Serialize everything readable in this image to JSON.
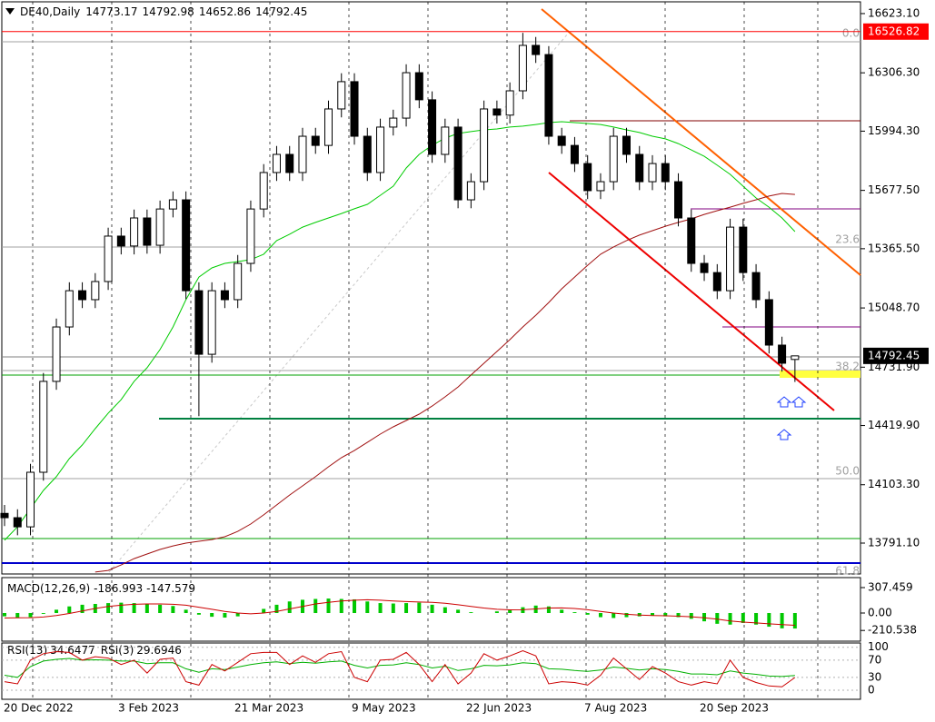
{
  "chart_data": {
    "type": "candlestick",
    "title": "DE40,Daily",
    "header_values": [
      14773.17,
      14792.98,
      14652.86,
      14792.45
    ],
    "bull_color": "#ffffff",
    "bear_color": "#000000",
    "wick_color": "#000000",
    "open": [
      13950,
      13927,
      13878,
      14170,
      14656,
      14947,
      15141,
      15093,
      15190,
      15433,
      15380,
      15530,
      15384,
      15578,
      15627,
      15141,
      14801,
      15141,
      15093,
      15287,
      15578,
      15773,
      15870,
      15773,
      15967,
      15918,
      16113,
      16259,
      15967,
      15773,
      16016,
      16064,
      16307,
      16162,
      15870,
      16016,
      15627,
      15724,
      16113,
      16080,
      16210,
      16453,
      16404,
      15967,
      15918,
      15821,
      15676,
      15724,
      15967,
      15870,
      15724,
      15821,
      15724,
      15530,
      15287,
      15238,
      15141,
      15481,
      15238,
      15093,
      14850,
      14773.17
    ],
    "high": [
      13995,
      13972,
      14215,
      14701,
      14992,
      15186,
      15186,
      15235,
      15478,
      15478,
      15575,
      15575,
      15623,
      15672,
      15672,
      15186,
      15186,
      15186,
      15332,
      15623,
      15818,
      15915,
      15915,
      16012,
      16012,
      16158,
      16304,
      16304,
      16012,
      16061,
      16109,
      16352,
      16352,
      16207,
      16061,
      16061,
      15769,
      16158,
      16158,
      16255,
      16520,
      16498,
      16449,
      16012,
      15963,
      15866,
      15769,
      16012,
      16012,
      15915,
      15866,
      15866,
      15769,
      15575,
      15332,
      15283,
      15526,
      15526,
      15283,
      15138,
      14895,
      14792.98
    ],
    "low": [
      13882,
      13833,
      13833,
      14125,
      14611,
      14902,
      15048,
      15048,
      15145,
      15335,
      15335,
      15339,
      15339,
      15533,
      15096,
      14470,
      14756,
      15048,
      15048,
      15242,
      15533,
      15728,
      15728,
      15728,
      15873,
      15873,
      16068,
      15922,
      15728,
      15728,
      15971,
      16019,
      16117,
      15825,
      15825,
      15582,
      15582,
      15679,
      16035,
      16035,
      16165,
      16359,
      15922,
      15873,
      15776,
      15631,
      15631,
      15679,
      15825,
      15679,
      15679,
      15679,
      15485,
      15242,
      15193,
      15096,
      15096,
      15193,
      15048,
      14805,
      14708,
      14652.86
    ],
    "close": [
      13927,
      13878,
      14170,
      14656,
      14947,
      15141,
      15093,
      15190,
      15433,
      15380,
      15530,
      15384,
      15578,
      15627,
      15141,
      14801,
      15141,
      15093,
      15287,
      15578,
      15773,
      15870,
      15773,
      15967,
      15918,
      16113,
      16259,
      15967,
      15773,
      16016,
      16064,
      16307,
      16162,
      15870,
      16016,
      15627,
      15724,
      16113,
      16080,
      16210,
      16453,
      16404,
      15967,
      15918,
      15821,
      15676,
      15724,
      15967,
      15870,
      15724,
      15821,
      15724,
      15530,
      15287,
      15238,
      15141,
      15481,
      15238,
      15093,
      14850,
      14753,
      14792.45
    ],
    "ylim": [
      13626,
      16686
    ],
    "yticks": [
      {
        "value": 16623.1,
        "label": "16623.10"
      },
      {
        "value": 16306.3,
        "label": "16306.30"
      },
      {
        "value": 15994.3,
        "label": "15994.30"
      },
      {
        "value": 15677.5,
        "label": "15677.50"
      },
      {
        "value": 15365.5,
        "label": "15365.50"
      },
      {
        "value": 15048.7,
        "label": "15048.70"
      },
      {
        "value": 14731.9,
        "label": "14731.90"
      },
      {
        "value": 14419.9,
        "label": "14419.90"
      },
      {
        "value": 14103.3,
        "label": "14103.30"
      },
      {
        "value": 13791.1,
        "label": "13791.10"
      }
    ],
    "level_line": {
      "value": 16526.82,
      "color": "#ff0000"
    },
    "last_price": 14792.45,
    "fib_labels": [
      {
        "value": 0,
        "label": "0.0"
      },
      23.6,
      38.2,
      {
        "value": 50,
        "label": "50.0"
      },
      61.8
    ],
    "x_labels": [
      "20 Dec 2022",
      "3 Feb 2023",
      "21 Mar 2023",
      "9 May 2023",
      "22 Jun 2023",
      "7 Aug 2023",
      "20 Sep 2023"
    ],
    "moving_averages": [
      {
        "color": "#00cc00",
        "values": [
          13806,
          13878,
          13976,
          14073,
          14146,
          14243,
          14316,
          14403,
          14486,
          14558,
          14656,
          14729,
          14826,
          14947,
          15093,
          15214,
          15263,
          15287,
          15297,
          15307,
          15336,
          15409,
          15443,
          15481,
          15506,
          15530,
          15554,
          15579,
          15603,
          15651,
          15700,
          15797,
          15870,
          15919,
          15957,
          15982,
          15992,
          16001,
          16006,
          16016,
          16021,
          16030,
          16040,
          16045,
          16040,
          16035,
          16030,
          16016,
          16001,
          15987,
          15967,
          15953,
          15928,
          15894,
          15860,
          15812,
          15763,
          15700,
          15637,
          15588,
          15530,
          15457
        ]
      },
      {
        "color": "#a01010",
        "values": [
          null,
          null,
          null,
          null,
          null,
          null,
          null,
          13636,
          13645,
          13674,
          13708,
          13733,
          13757,
          13776,
          13791,
          13801,
          13810,
          13825,
          13854,
          13893,
          13942,
          13995,
          14048,
          14097,
          14146,
          14199,
          14248,
          14286,
          14330,
          14374,
          14413,
          14447,
          14481,
          14524,
          14573,
          14626,
          14690,
          14753,
          14816,
          14879,
          14947,
          15010,
          15078,
          15151,
          15214,
          15277,
          15336,
          15375,
          15409,
          15438,
          15462,
          15486,
          15506,
          15525,
          15549,
          15569,
          15588,
          15608,
          15627,
          15647,
          15661,
          15656
        ]
      }
    ],
    "macd": {
      "title": "MACD(12,26,9)",
      "printed": [
        -186.993,
        -147.579
      ],
      "ylim": [
        -340,
        428
      ],
      "yticks": [
        307.459,
        {
          "value": 0,
          "label": "0.00"
        },
        -210.538
      ],
      "histogram": {
        "color": "#00c800",
        "values": [
          -40,
          -60,
          -50,
          -10,
          40,
          80,
          100,
          110,
          120,
          125,
          120,
          110,
          100,
          85,
          40,
          -20,
          -45,
          -55,
          -40,
          0,
          50,
          100,
          140,
          160,
          170,
          175,
          170,
          165,
          140,
          120,
          115,
          120,
          125,
          100,
          70,
          40,
          10,
          0,
          20,
          40,
          70,
          90,
          80,
          40,
          10,
          -20,
          -50,
          -60,
          -50,
          -40,
          -30,
          -40,
          -50,
          -70,
          -100,
          -130,
          -140,
          -120,
          -140,
          -165,
          -185,
          -186.993
        ]
      },
      "signal": {
        "color": "#cc0000",
        "values": [
          -60,
          -58,
          -56,
          -48,
          -30,
          -5,
          25,
          55,
          80,
          95,
          105,
          110,
          110,
          105,
          95,
          70,
          45,
          20,
          0,
          -10,
          0,
          20,
          50,
          80,
          110,
          130,
          145,
          155,
          160,
          155,
          145,
          138,
          133,
          128,
          118,
          100,
          80,
          60,
          45,
          38,
          40,
          50,
          60,
          62,
          55,
          40,
          20,
          0,
          -15,
          -25,
          -30,
          -33,
          -38,
          -45,
          -58,
          -75,
          -95,
          -110,
          -120,
          -130,
          -140,
          -147.579
        ]
      }
    },
    "rsi": {
      "series": [
        {
          "name": "RSI(13)",
          "printed": 34.6477,
          "color": "#00b000",
          "values": [
            35,
            30,
            55,
            68,
            72,
            74,
            70,
            71,
            70,
            68,
            68,
            62,
            64,
            64,
            50,
            42,
            50,
            48,
            54,
            60,
            64,
            66,
            62,
            65,
            63,
            66,
            68,
            58,
            52,
            58,
            59,
            64,
            60,
            52,
            56,
            46,
            50,
            58,
            57,
            59,
            64,
            62,
            50,
            49,
            46,
            44,
            47,
            54,
            51,
            47,
            50,
            48,
            44,
            38,
            38,
            36,
            45,
            40,
            37,
            33,
            32,
            34.6477
          ]
        },
        {
          "name": "RSI(3)",
          "printed": 29.6946,
          "color": "#cc0000",
          "values": [
            20,
            15,
            70,
            85,
            90,
            88,
            70,
            78,
            75,
            60,
            70,
            40,
            72,
            75,
            20,
            12,
            60,
            45,
            65,
            85,
            88,
            88,
            60,
            80,
            65,
            85,
            90,
            30,
            20,
            70,
            72,
            88,
            60,
            20,
            60,
            15,
            40,
            85,
            70,
            80,
            92,
            80,
            15,
            20,
            18,
            12,
            35,
            75,
            50,
            25,
            55,
            40,
            20,
            12,
            20,
            15,
            70,
            30,
            18,
            10,
            8,
            29.6946
          ]
        }
      ],
      "ylim": [
        -21,
        110
      ],
      "yticks": [
        100,
        70,
        30,
        0
      ]
    }
  }
}
